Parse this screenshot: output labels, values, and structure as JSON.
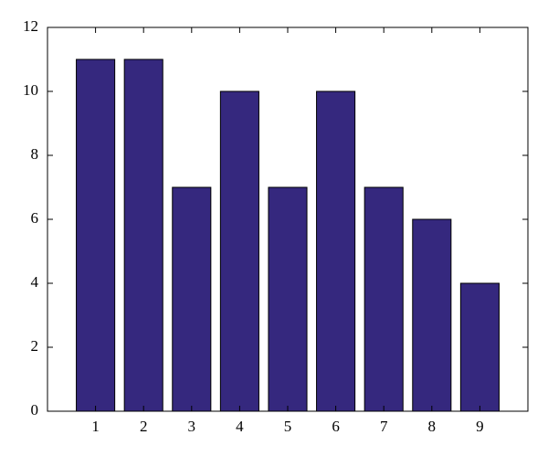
{
  "chart_data": {
    "type": "bar",
    "x": [
      1,
      2,
      3,
      4,
      5,
      6,
      7,
      8,
      9
    ],
    "values": [
      11,
      11,
      7,
      10,
      7,
      10,
      7,
      6,
      4
    ],
    "color": "#35287e",
    "xlim": [
      0,
      10
    ],
    "xticks": [
      1,
      2,
      3,
      4,
      5,
      6,
      7,
      8,
      9
    ],
    "ylim": [
      0,
      12
    ],
    "yticks": [
      0,
      2,
      4,
      6,
      8,
      10,
      12
    ],
    "bar_width": 0.8
  }
}
